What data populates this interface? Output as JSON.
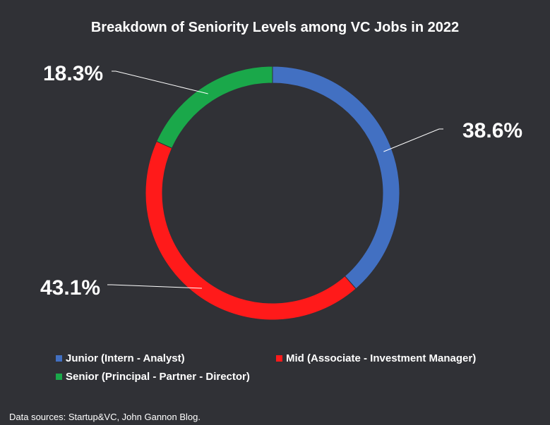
{
  "chart_data": {
    "type": "pie",
    "title": "Breakdown of Seniority Levels among VC Jobs in 2022",
    "series": [
      {
        "name": "Junior (Intern - Analyst)",
        "value": 38.6,
        "label": "38.6%",
        "color": "#4270C2"
      },
      {
        "name": "Mid (Associate - Investment Manager)",
        "value": 43.1,
        "label": "43.1%",
        "color": "#FF1A1A"
      },
      {
        "name": "Senior (Principal - Partner - Director)",
        "value": 18.3,
        "label": "18.3%",
        "color": "#1AA84A"
      }
    ],
    "legend_position": "bottom",
    "donut": true
  },
  "footer": {
    "source": "Data sources: Startup&VC, John Gannon Blog."
  }
}
